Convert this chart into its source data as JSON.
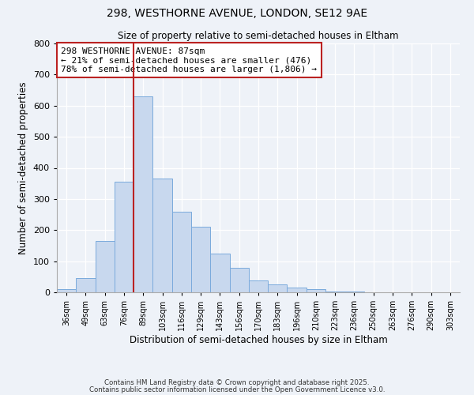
{
  "title1": "298, WESTHORNE AVENUE, LONDON, SE12 9AE",
  "title2": "Size of property relative to semi-detached houses in Eltham",
  "xlabel": "Distribution of semi-detached houses by size in Eltham",
  "ylabel": "Number of semi-detached properties",
  "bar_labels": [
    "36sqm",
    "49sqm",
    "63sqm",
    "76sqm",
    "89sqm",
    "103sqm",
    "116sqm",
    "129sqm",
    "143sqm",
    "156sqm",
    "170sqm",
    "183sqm",
    "196sqm",
    "210sqm",
    "223sqm",
    "236sqm",
    "250sqm",
    "263sqm",
    "276sqm",
    "290sqm",
    "303sqm"
  ],
  "bar_values": [
    10,
    45,
    165,
    355,
    630,
    365,
    258,
    210,
    125,
    80,
    38,
    25,
    15,
    10,
    3,
    2,
    1,
    1,
    0,
    1,
    0
  ],
  "bar_color": "#c8d8ee",
  "bar_edge_color": "#7aaadc",
  "vline_index": 4,
  "vline_color": "#bb2222",
  "annotation_title": "298 WESTHORNE AVENUE: 87sqm",
  "annotation_line1": "← 21% of semi-detached houses are smaller (476)",
  "annotation_line2": "78% of semi-detached houses are larger (1,806) →",
  "annotation_box_edgecolor": "#bb2222",
  "ylim": [
    0,
    800
  ],
  "yticks": [
    0,
    100,
    200,
    300,
    400,
    500,
    600,
    700,
    800
  ],
  "footnote1": "Contains HM Land Registry data © Crown copyright and database right 2025.",
  "footnote2": "Contains public sector information licensed under the Open Government Licence v3.0.",
  "bg_color": "#eef2f8",
  "grid_color": "#ffffff"
}
